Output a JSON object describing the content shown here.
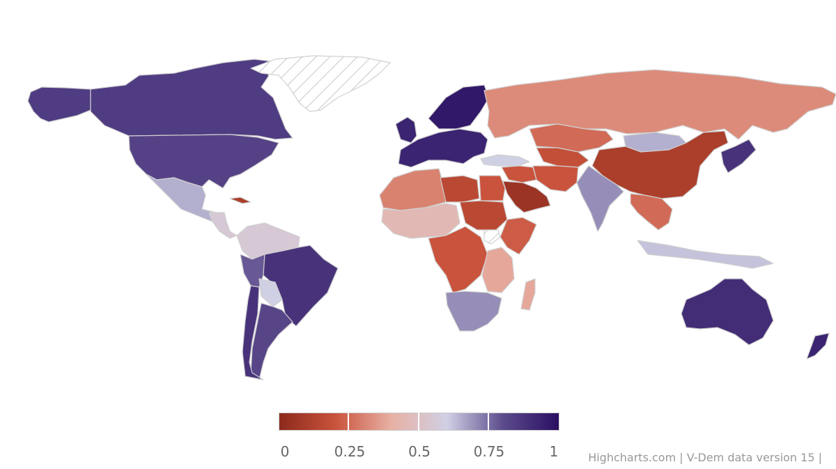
{
  "colors": {
    "background": "#ffffff",
    "border": "#d0d0d0",
    "no_data_hatch": "#b8b8b8",
    "scale": [
      "#8c2a1c",
      "#c9533c",
      "#e8b0a4",
      "#d0d0e4",
      "#5c4b8c",
      "#2a0f62"
    ]
  },
  "legend": {
    "ticks": [
      "0",
      "0.25",
      "0.5",
      "0.75",
      "1"
    ],
    "min": 0,
    "max": 1
  },
  "credits": "Highcharts.com | V-Dem data version 15 |",
  "regions": [
    {
      "key": "alaska",
      "value": 0.85
    },
    {
      "key": "canada",
      "value": 0.85
    },
    {
      "key": "usa",
      "value": 0.83
    },
    {
      "key": "mexico",
      "value": 0.65
    },
    {
      "key": "central-america",
      "value": 0.55
    },
    {
      "key": "cuba",
      "value": 0.1
    },
    {
      "key": "greenland",
      "value": null
    },
    {
      "key": "colombia-venezuela",
      "value": 0.55
    },
    {
      "key": "peru",
      "value": 0.78
    },
    {
      "key": "brazil",
      "value": 0.88
    },
    {
      "key": "bolivia",
      "value": 0.6
    },
    {
      "key": "argentina",
      "value": 0.82
    },
    {
      "key": "chile",
      "value": 0.88
    },
    {
      "key": "western-europe",
      "value": 0.93
    },
    {
      "key": "scandinavia",
      "value": 0.97
    },
    {
      "key": "iceland-uk",
      "value": 0.93
    },
    {
      "key": "turkey",
      "value": 0.6
    },
    {
      "key": "russia",
      "value": 0.32
    },
    {
      "key": "kazakhstan",
      "value": 0.25
    },
    {
      "key": "central-asia",
      "value": 0.18
    },
    {
      "key": "mongolia",
      "value": 0.65
    },
    {
      "key": "china",
      "value": 0.1
    },
    {
      "key": "india",
      "value": 0.7
    },
    {
      "key": "middle-east",
      "value": 0.2
    },
    {
      "key": "saudi-arabia",
      "value": 0.05
    },
    {
      "key": "iran",
      "value": 0.2
    },
    {
      "key": "north-africa-west",
      "value": 0.3
    },
    {
      "key": "libya",
      "value": 0.15
    },
    {
      "key": "egypt",
      "value": 0.2
    },
    {
      "key": "sahel-west",
      "value": 0.45
    },
    {
      "key": "sudan",
      "value": 0.15
    },
    {
      "key": "horn-of-africa",
      "value": 0.22
    },
    {
      "key": "central-africa",
      "value": 0.2
    },
    {
      "key": "east-africa",
      "value": 0.38
    },
    {
      "key": "southern-africa",
      "value": 0.7
    },
    {
      "key": "madagascar",
      "value": 0.38
    },
    {
      "key": "southeast-asia",
      "value": 0.25
    },
    {
      "key": "indonesia",
      "value": 0.62
    },
    {
      "key": "japan-korea",
      "value": 0.88
    },
    {
      "key": "australia",
      "value": 0.9
    },
    {
      "key": "new-zealand",
      "value": 0.93
    },
    {
      "key": "south-sudan",
      "value": null
    }
  ]
}
